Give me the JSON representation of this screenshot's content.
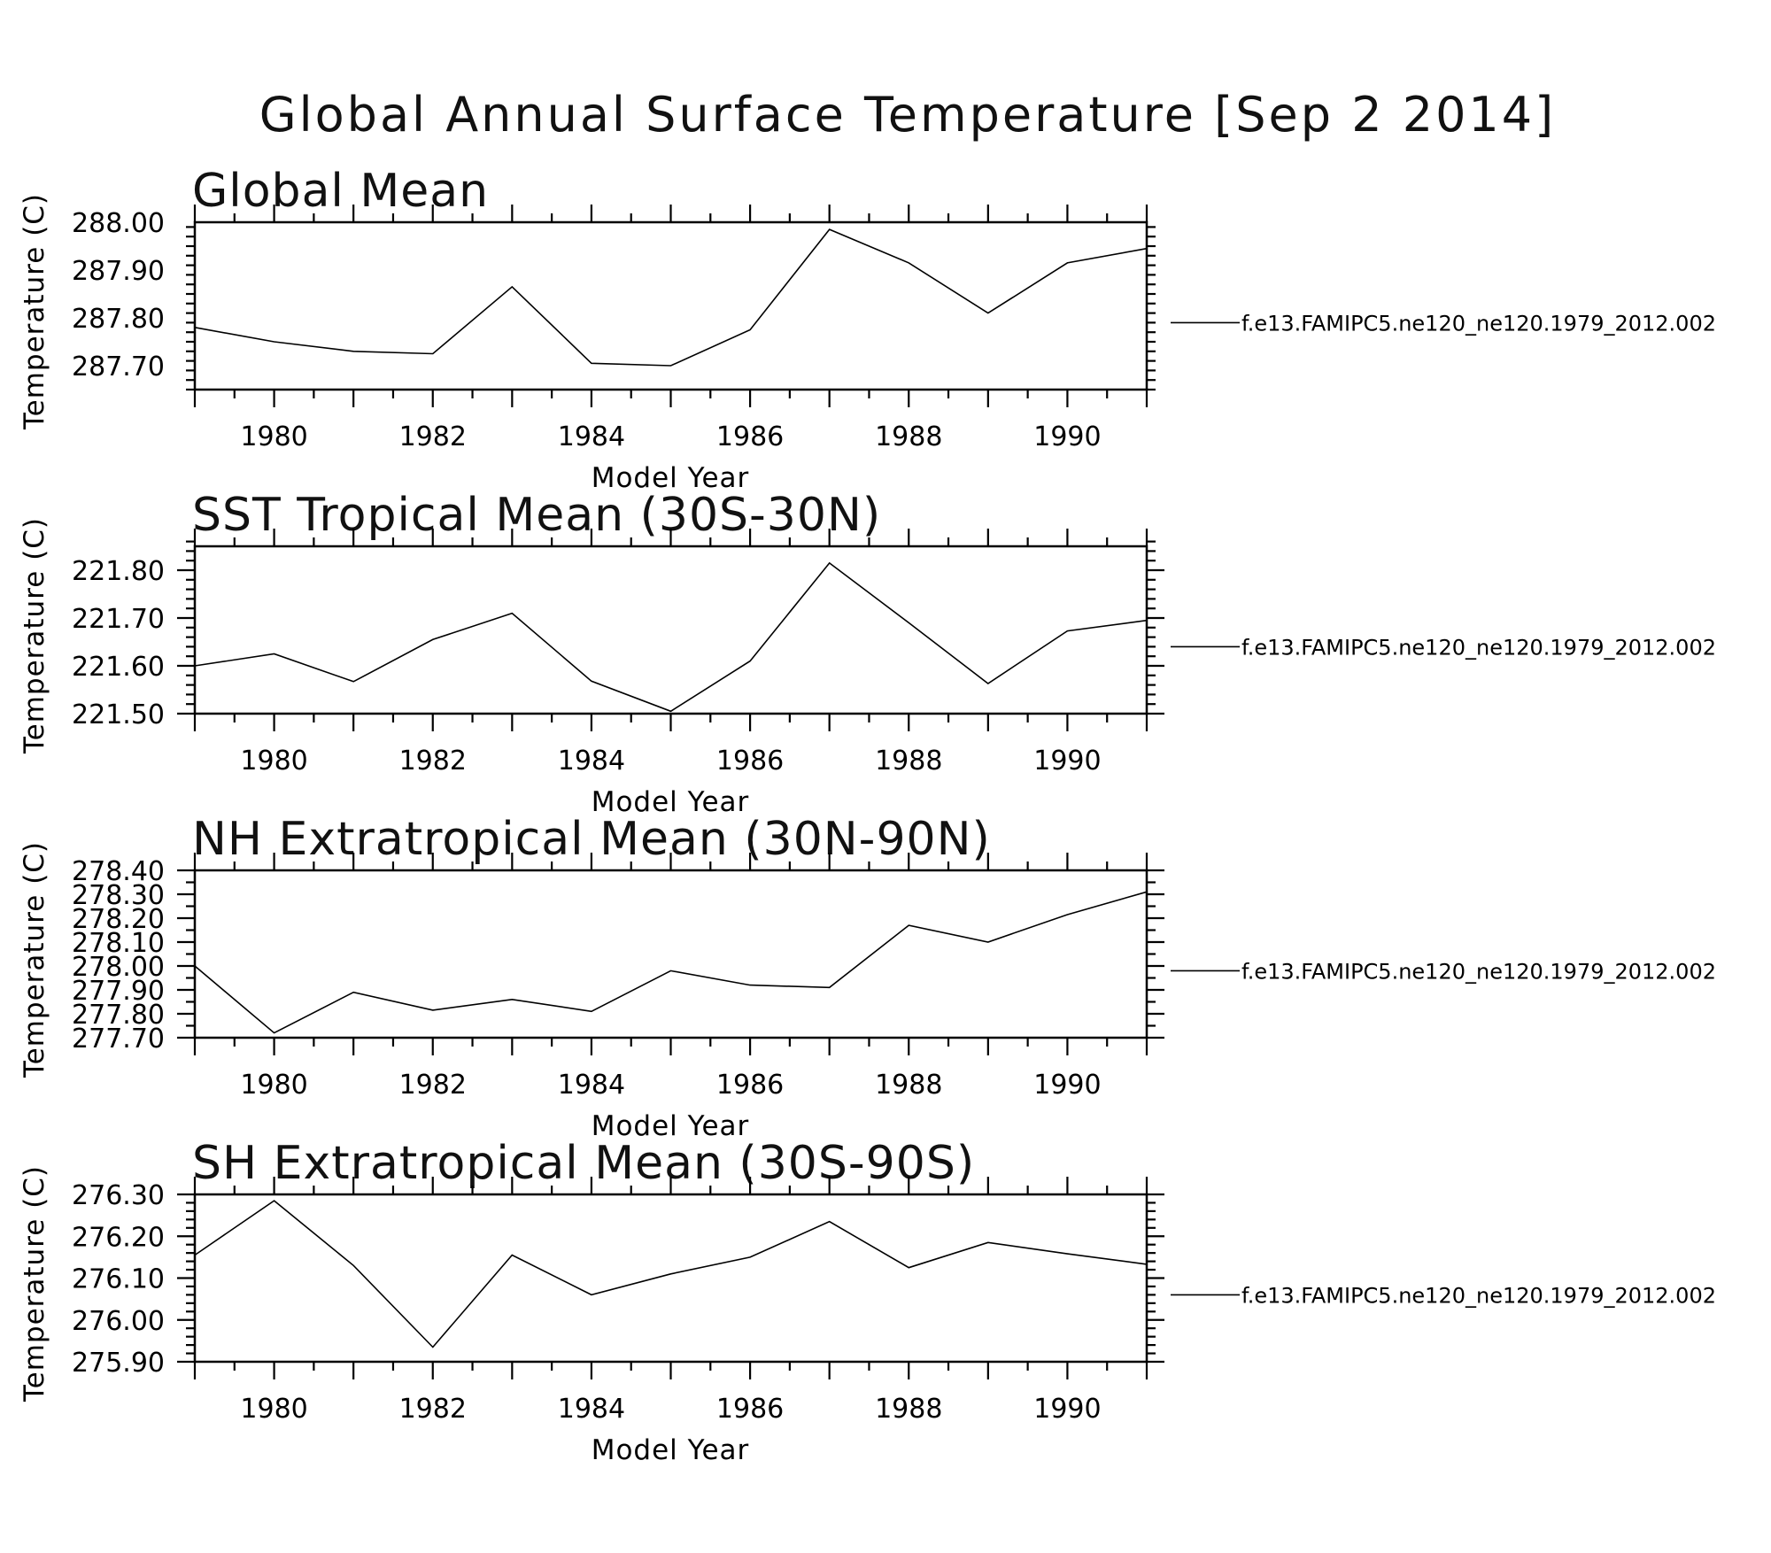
{
  "title": "Global Annual Surface Temperature [Sep  2 2014]",
  "chart_data": [
    {
      "type": "line",
      "title": "Global Mean",
      "xlabel": "Model Year",
      "ylabel": "Temperature (C)",
      "xlim": [
        1979,
        1991
      ],
      "ylim": [
        287.65,
        288.0
      ],
      "xticks": [
        1980,
        1982,
        1984,
        1986,
        1988,
        1990
      ],
      "xtick_labels": [
        "1980",
        "1982",
        "1984",
        "1986",
        "1988",
        "1990"
      ],
      "yticks": [
        287.7,
        287.8,
        287.9,
        288.0
      ],
      "ytick_labels": [
        "287.70",
        "287.80",
        "287.90",
        "288.00"
      ],
      "x": [
        1979,
        1980,
        1981,
        1982,
        1983,
        1984,
        1985,
        1986,
        1987,
        1988,
        1989,
        1990,
        1991
      ],
      "series": [
        {
          "name": "f.e13.FAMIPC5.ne120_ne120.1979_2012.002",
          "values": [
            287.78,
            287.75,
            287.73,
            287.725,
            287.865,
            287.705,
            287.7,
            287.775,
            287.985,
            287.915,
            287.81,
            287.915,
            287.945
          ]
        }
      ]
    },
    {
      "type": "line",
      "title": "SST Tropical Mean (30S-30N)",
      "xlabel": "Model Year",
      "ylabel": "Temperature (C)",
      "xlim": [
        1979,
        1991
      ],
      "ylim": [
        221.5,
        221.85
      ],
      "xticks": [
        1980,
        1982,
        1984,
        1986,
        1988,
        1990
      ],
      "xtick_labels": [
        "1980",
        "1982",
        "1984",
        "1986",
        "1988",
        "1990"
      ],
      "yticks": [
        221.5,
        221.6,
        221.7,
        221.8
      ],
      "ytick_labels": [
        "221.50",
        "221.60",
        "221.70",
        "221.80"
      ],
      "x": [
        1979,
        1980,
        1981,
        1982,
        1983,
        1984,
        1985,
        1986,
        1987,
        1988,
        1989,
        1990,
        1991
      ],
      "series": [
        {
          "name": "f.e13.FAMIPC5.ne120_ne120.1979_2012.002",
          "values": [
            221.6,
            221.625,
            221.567,
            221.655,
            221.71,
            221.568,
            221.505,
            221.61,
            221.815,
            221.69,
            221.563,
            221.673,
            221.695
          ]
        }
      ]
    },
    {
      "type": "line",
      "title": "NH Extratropical Mean (30N-90N)",
      "xlabel": "Model Year",
      "ylabel": "Temperature (C)",
      "xlim": [
        1979,
        1991
      ],
      "ylim": [
        277.7,
        278.4
      ],
      "xticks": [
        1980,
        1982,
        1984,
        1986,
        1988,
        1990
      ],
      "xtick_labels": [
        "1980",
        "1982",
        "1984",
        "1986",
        "1988",
        "1990"
      ],
      "yticks": [
        277.7,
        277.8,
        277.9,
        278.0,
        278.1,
        278.2,
        278.3,
        278.4
      ],
      "ytick_labels": [
        "277.70",
        "277.80",
        "277.90",
        "278.00",
        "278.10",
        "278.20",
        "278.30",
        "278.40"
      ],
      "x": [
        1979,
        1980,
        1981,
        1982,
        1983,
        1984,
        1985,
        1986,
        1987,
        1988,
        1989,
        1990,
        1991
      ],
      "series": [
        {
          "name": "f.e13.FAMIPC5.ne120_ne120.1979_2012.002",
          "values": [
            278.0,
            277.72,
            277.89,
            277.815,
            277.86,
            277.81,
            277.98,
            277.92,
            277.91,
            278.17,
            278.1,
            278.215,
            278.31
          ]
        }
      ]
    },
    {
      "type": "line",
      "title": "SH Extratropical Mean (30S-90S)",
      "xlabel": "Model Year",
      "ylabel": "Temperature (C)",
      "xlim": [
        1979,
        1991
      ],
      "ylim": [
        275.9,
        276.3
      ],
      "xticks": [
        1980,
        1982,
        1984,
        1986,
        1988,
        1990
      ],
      "xtick_labels": [
        "1980",
        "1982",
        "1984",
        "1986",
        "1988",
        "1990"
      ],
      "yticks": [
        275.9,
        276.0,
        276.1,
        276.2,
        276.3
      ],
      "ytick_labels": [
        "275.90",
        "276.00",
        "276.10",
        "276.20",
        "276.30"
      ],
      "x": [
        1979,
        1980,
        1981,
        1982,
        1983,
        1984,
        1985,
        1986,
        1987,
        1988,
        1989,
        1990,
        1991
      ],
      "series": [
        {
          "name": "f.e13.FAMIPC5.ne120_ne120.1979_2012.002",
          "values": [
            276.155,
            276.285,
            276.13,
            275.935,
            276.155,
            276.06,
            276.11,
            276.15,
            276.235,
            276.125,
            276.185,
            276.158,
            276.133
          ]
        }
      ]
    }
  ]
}
